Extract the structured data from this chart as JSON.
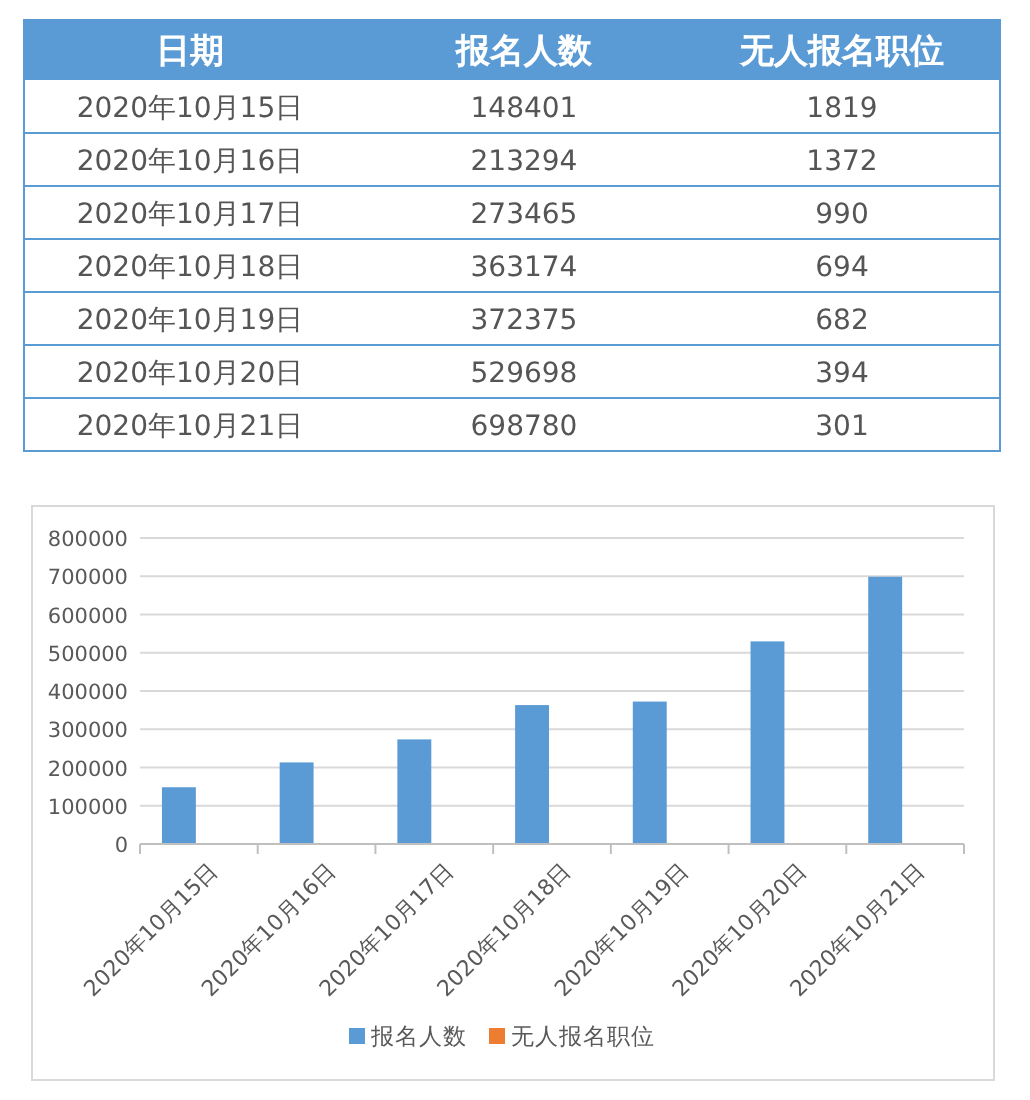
{
  "chart_data": [
    {
      "type": "other",
      "annotations": [
        "日期"
      ],
      "categories": [
        "2020年10月15日",
        "2020年10月16日",
        "2020年10月17日",
        "2020年10月18日",
        "2020年10月19日",
        "2020年10月20日",
        "2020年10月21日"
      ],
      "series": [
        {
          "name": "报名人数",
          "values": [
            148401,
            213294,
            273465,
            363174,
            372375,
            529698,
            698780
          ],
          "value_labels": [
            "148401",
            "213294",
            "273465",
            "363174",
            "372375",
            "529698",
            "698780"
          ]
        },
        {
          "name": "无人报名职位",
          "values": [
            1819,
            1372,
            990,
            694,
            682,
            394,
            301
          ],
          "value_labels": [
            "1819",
            "1372",
            "990",
            "694",
            "682",
            "394",
            "301"
          ]
        }
      ]
    },
    {
      "type": "bar",
      "categories": [
        "2020年10月15日",
        "2020年10月16日",
        "2020年10月17日",
        "2020年10月18日",
        "2020年10月19日",
        "2020年10月20日",
        "2020年10月21日"
      ],
      "series": [
        {
          "name": "报名人数",
          "color": "#5b9bd5",
          "values": [
            148401,
            213294,
            273465,
            363174,
            372375,
            529698,
            698780
          ]
        },
        {
          "name": "无人报名职位",
          "color": "#ed7d31",
          "values": [
            1819,
            1372,
            990,
            694,
            682,
            394,
            301
          ]
        }
      ],
      "ylim": [
        0,
        800000
      ],
      "yticks": [
        0,
        100000,
        200000,
        300000,
        400000,
        500000,
        600000,
        700000,
        800000
      ],
      "grid": "y",
      "legend": "bottom"
    }
  ]
}
